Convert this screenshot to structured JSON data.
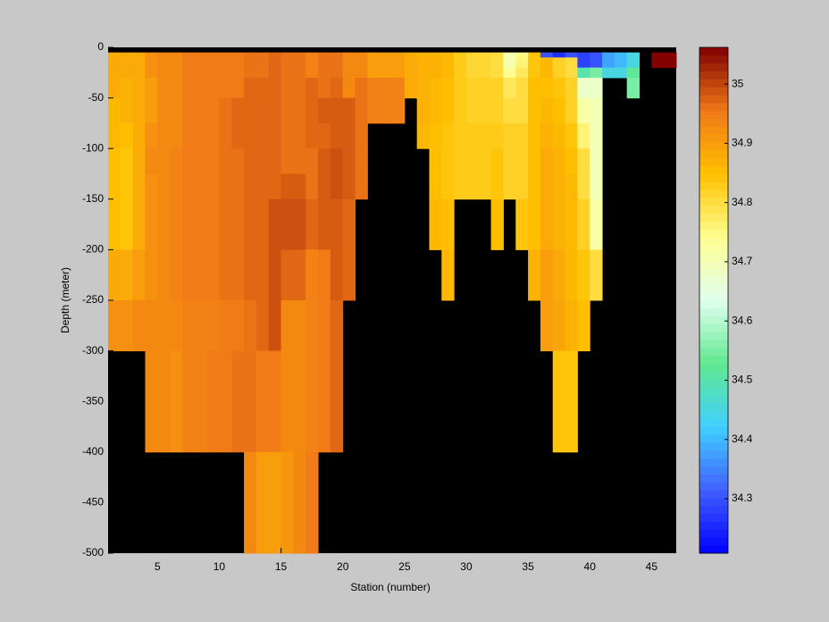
{
  "chart_data": {
    "type": "heatmap",
    "xlabel": "Station (number)",
    "ylabel": "Depth (meter)",
    "x": [
      1,
      2,
      3,
      4,
      5,
      6,
      7,
      8,
      9,
      10,
      11,
      12,
      13,
      14,
      15,
      16,
      17,
      18,
      19,
      20,
      21,
      22,
      23,
      24,
      25,
      26,
      27,
      28,
      29,
      30,
      31,
      32,
      33,
      34,
      35,
      36,
      37,
      38,
      39,
      40,
      41,
      42,
      43,
      44,
      45,
      46,
      47
    ],
    "y": [
      0,
      -5,
      -10,
      -20,
      -30,
      -50,
      -75,
      -100,
      -125,
      -150,
      -200,
      -250,
      -300,
      -400,
      -500
    ],
    "z": [
      [
        null,
        34.88,
        34.88,
        34.88,
        34.88,
        34.86,
        34.86,
        34.85,
        34.85,
        34.85,
        34.88,
        34.92,
        null,
        null
      ],
      [
        null,
        34.88,
        34.88,
        34.88,
        34.87,
        34.87,
        34.85,
        34.84,
        34.84,
        34.84,
        34.88,
        34.92,
        null,
        null
      ],
      [
        null,
        34.88,
        34.88,
        34.88,
        34.88,
        34.88,
        34.88,
        34.88,
        34.88,
        34.88,
        34.9,
        34.93,
        null,
        null
      ],
      [
        null,
        34.92,
        34.92,
        34.92,
        34.9,
        34.9,
        34.92,
        34.93,
        34.92,
        34.92,
        34.92,
        34.93,
        34.93,
        null
      ],
      [
        null,
        34.93,
        34.93,
        34.93,
        34.93,
        34.93,
        34.93,
        34.93,
        34.93,
        34.93,
        34.93,
        34.93,
        34.93,
        null
      ],
      [
        null,
        34.93,
        34.93,
        34.93,
        34.93,
        34.93,
        34.93,
        34.94,
        34.94,
        34.94,
        34.94,
        34.93,
        34.92,
        null
      ],
      [
        null,
        34.95,
        34.95,
        34.95,
        34.95,
        34.95,
        34.95,
        34.95,
        34.95,
        34.95,
        34.95,
        34.94,
        34.94,
        null
      ],
      [
        null,
        34.95,
        34.95,
        34.95,
        34.95,
        34.95,
        34.95,
        34.95,
        34.95,
        34.95,
        34.95,
        34.94,
        34.94,
        null
      ],
      [
        null,
        34.95,
        34.95,
        34.95,
        34.95,
        34.95,
        34.95,
        34.95,
        34.95,
        34.95,
        34.95,
        34.94,
        34.95,
        null
      ],
      [
        null,
        34.95,
        34.95,
        34.95,
        34.95,
        34.96,
        34.96,
        34.96,
        34.96,
        34.96,
        34.96,
        34.95,
        34.95,
        null
      ],
      [
        null,
        34.95,
        34.95,
        34.95,
        34.95,
        34.97,
        34.97,
        34.96,
        34.96,
        34.96,
        34.96,
        34.95,
        34.96,
        null
      ],
      [
        null,
        34.96,
        34.96,
        34.96,
        34.97,
        34.97,
        34.97,
        34.97,
        34.97,
        34.97,
        34.97,
        34.96,
        34.96,
        34.93
      ],
      [
        null,
        34.96,
        34.96,
        34.96,
        34.97,
        34.97,
        34.97,
        34.97,
        34.97,
        34.97,
        34.97,
        34.97,
        34.95,
        34.9
      ],
      [
        null,
        34.97,
        34.97,
        34.97,
        34.97,
        34.97,
        34.97,
        34.97,
        34.97,
        34.99,
        34.99,
        34.99,
        34.95,
        34.9
      ],
      [
        null,
        34.96,
        34.96,
        34.96,
        34.96,
        34.96,
        34.96,
        34.96,
        34.98,
        34.99,
        34.97,
        34.93,
        34.93,
        34.91
      ],
      [
        null,
        34.96,
        34.96,
        34.96,
        34.96,
        34.96,
        34.96,
        34.96,
        34.98,
        34.99,
        34.97,
        34.93,
        34.93,
        34.93
      ],
      [
        null,
        34.94,
        34.94,
        34.94,
        34.97,
        34.97,
        34.97,
        34.96,
        34.96,
        34.97,
        34.94,
        34.94,
        34.94,
        34.95
      ],
      [
        null,
        34.96,
        34.96,
        34.96,
        34.96,
        34.98,
        34.97,
        34.98,
        34.98,
        34.98,
        34.95,
        34.95,
        34.95,
        null
      ],
      [
        null,
        34.96,
        34.96,
        34.96,
        34.97,
        34.98,
        34.98,
        34.99,
        34.99,
        34.98,
        34.98,
        34.97,
        34.97,
        null
      ],
      [
        null,
        34.93,
        34.93,
        34.93,
        34.93,
        34.98,
        34.98,
        34.98,
        34.98,
        34.97,
        34.97,
        null,
        null,
        null
      ],
      [
        null,
        34.93,
        34.93,
        34.93,
        34.96,
        34.96,
        34.96,
        34.96,
        34.96,
        null,
        null,
        null,
        null,
        null
      ],
      [
        null,
        34.9,
        34.9,
        34.9,
        34.94,
        34.94,
        null,
        null,
        null,
        null,
        null,
        null,
        null,
        null
      ],
      [
        null,
        34.9,
        34.9,
        34.9,
        34.94,
        34.94,
        null,
        null,
        null,
        null,
        null,
        null,
        null,
        null
      ],
      [
        null,
        34.9,
        34.9,
        34.9,
        34.94,
        34.94,
        null,
        null,
        null,
        null,
        null,
        null,
        null,
        null
      ],
      [
        null,
        34.88,
        34.88,
        34.88,
        34.88,
        null,
        null,
        null,
        null,
        null,
        null,
        null,
        null,
        null
      ],
      [
        null,
        34.87,
        34.87,
        34.87,
        34.87,
        34.87,
        34.86,
        null,
        null,
        null,
        null,
        null,
        null,
        null
      ],
      [
        null,
        34.87,
        34.87,
        34.87,
        34.86,
        34.86,
        34.85,
        34.85,
        34.85,
        34.86,
        null,
        null,
        null,
        null
      ],
      [
        null,
        34.86,
        34.86,
        34.86,
        34.85,
        34.85,
        34.84,
        34.84,
        34.84,
        34.85,
        34.86,
        null,
        null,
        null
      ],
      [
        null,
        34.83,
        34.83,
        34.83,
        34.83,
        34.83,
        34.83,
        34.83,
        34.83,
        null,
        null,
        null,
        null,
        null
      ],
      [
        null,
        34.81,
        34.81,
        34.81,
        34.82,
        34.82,
        34.83,
        34.83,
        34.83,
        null,
        null,
        null,
        null,
        null
      ],
      [
        null,
        34.81,
        34.81,
        34.81,
        34.82,
        34.82,
        34.83,
        34.83,
        34.83,
        null,
        null,
        null,
        null,
        null
      ],
      [
        null,
        34.8,
        34.8,
        34.8,
        34.82,
        34.82,
        34.83,
        34.84,
        34.84,
        34.85,
        null,
        null,
        null,
        null
      ],
      [
        null,
        34.71,
        34.71,
        34.74,
        34.78,
        34.8,
        34.82,
        34.82,
        34.82,
        null,
        null,
        null,
        null,
        null
      ],
      [
        null,
        34.75,
        34.76,
        34.78,
        34.8,
        34.8,
        34.82,
        34.82,
        34.82,
        34.84,
        null,
        null,
        null,
        null
      ],
      [
        null,
        34.84,
        34.84,
        34.84,
        34.85,
        34.85,
        34.85,
        34.85,
        34.85,
        34.85,
        34.87,
        null,
        null,
        null
      ],
      [
        null,
        34.3,
        34.86,
        34.86,
        34.85,
        34.86,
        34.87,
        34.88,
        34.88,
        34.88,
        34.9,
        34.9,
        null,
        null
      ],
      [
        null,
        34.26,
        34.82,
        34.82,
        34.84,
        34.85,
        34.86,
        34.87,
        34.87,
        34.87,
        34.88,
        34.89,
        34.84,
        null
      ],
      [
        null,
        34.3,
        34.8,
        34.8,
        34.82,
        34.82,
        34.84,
        34.85,
        34.86,
        34.86,
        34.86,
        34.87,
        34.84,
        null
      ],
      [
        null,
        34.28,
        34.28,
        34.5,
        34.68,
        34.72,
        34.76,
        34.8,
        34.8,
        34.82,
        34.84,
        34.85,
        null,
        null
      ],
      [
        null,
        34.3,
        34.3,
        34.55,
        34.68,
        34.7,
        34.7,
        34.7,
        34.7,
        34.72,
        34.8,
        null,
        null,
        null
      ],
      [
        null,
        34.38,
        34.38,
        34.45,
        null,
        null,
        null,
        null,
        null,
        null,
        null,
        null,
        null,
        null
      ],
      [
        null,
        34.4,
        34.4,
        34.45,
        null,
        null,
        null,
        null,
        null,
        null,
        null,
        null,
        null,
        null
      ],
      [
        null,
        34.45,
        34.45,
        34.52,
        34.55,
        null,
        null,
        null,
        null,
        null,
        null,
        null,
        null,
        null
      ],
      [
        null,
        null,
        null,
        null,
        null,
        null,
        null,
        null,
        null,
        null,
        null,
        null,
        null,
        null
      ],
      [
        null,
        35.06,
        35.06,
        null,
        null,
        null,
        null,
        null,
        null,
        null,
        null,
        null,
        null,
        null
      ],
      [
        null,
        35.06,
        35.06,
        null,
        null,
        null,
        null,
        null,
        null,
        null,
        null,
        null,
        null,
        null
      ]
    ],
    "xlim": [
      1,
      47
    ],
    "ylim": [
      -500,
      0
    ],
    "xticks": [
      5,
      10,
      15,
      20,
      25,
      30,
      35,
      40,
      45
    ],
    "yticks": [
      0,
      -50,
      -100,
      -150,
      -200,
      -250,
      -300,
      -350,
      -400,
      -450,
      -500
    ],
    "clim": [
      34.208,
      35.062
    ],
    "cticks": [
      34.3,
      34.4,
      34.5,
      34.6,
      34.7,
      34.8,
      34.9,
      35
    ],
    "colormap": [
      "#0000ff",
      "#4060ff",
      "#40d0ff",
      "#60e890",
      "#e0fff0",
      "#ffff90",
      "#ffc000",
      "#f07818",
      "#800000"
    ],
    "missing_color": "#000000"
  }
}
